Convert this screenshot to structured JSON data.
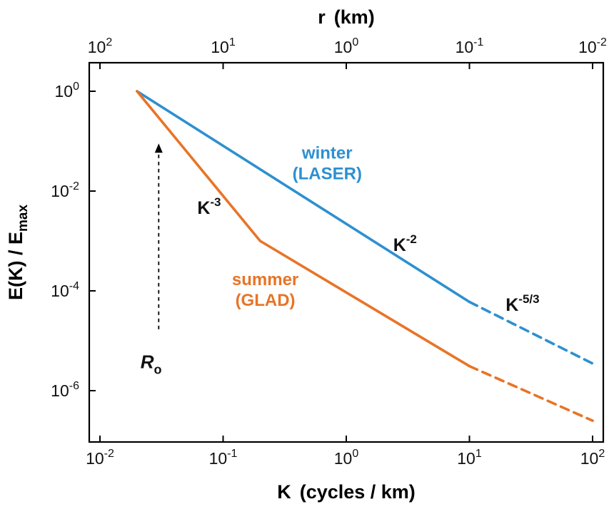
{
  "figure": {
    "background": "#ffffff",
    "frame_color": "#000000"
  },
  "chart_data": {
    "type": "line",
    "title": "",
    "grid": false,
    "legend": "none (in-plot curve labels)",
    "x_axis": {
      "label_main": "K",
      "label_paren": "(cycles / km)",
      "scale": "log",
      "tick_exponents": [
        -2,
        -1,
        0,
        1,
        2
      ],
      "range_exponents": [
        -2.1,
        2.1
      ]
    },
    "top_axis": {
      "label_main": "r",
      "label_paren": "(km)",
      "scale": "log",
      "tick_exponents": [
        2,
        1,
        0,
        -1,
        -2
      ]
    },
    "y_axis": {
      "label_main": "E(K) / E",
      "label_sub": "max",
      "scale": "log",
      "tick_exponents": [
        0,
        -2,
        -4,
        -6
      ],
      "range_exponents": [
        0.57,
        -7.0
      ]
    },
    "series": [
      {
        "name": "winter (LASER) solid",
        "color": "#2d90d0",
        "style": "solid",
        "points": [
          [
            0.02,
            1
          ],
          [
            10,
            6e-05
          ]
        ]
      },
      {
        "name": "winter (LASER) dashed tail",
        "color": "#2d90d0",
        "style": "dashed",
        "points": [
          [
            10,
            6e-05
          ],
          [
            100,
            3.5e-06
          ]
        ]
      },
      {
        "name": "summer (GLAD) solid",
        "color": "#e87427",
        "style": "solid",
        "points": [
          [
            0.02,
            1
          ],
          [
            0.2,
            0.001
          ],
          [
            10,
            3.1e-06
          ]
        ]
      },
      {
        "name": "summer (GLAD) dashed tail",
        "color": "#e87427",
        "style": "dashed",
        "points": [
          [
            10,
            3.1e-06
          ],
          [
            100,
            2.5e-07
          ]
        ]
      }
    ],
    "curve_labels": [
      {
        "lines": [
          "winter",
          "(LASER)"
        ],
        "color": "#2d90d0",
        "anchor": [
          0.7,
          0.045
        ]
      },
      {
        "lines": [
          "summer",
          "(GLAD)"
        ],
        "color": "#e87427",
        "anchor": [
          0.22,
          0.00013
        ]
      }
    ],
    "slope_labels": [
      {
        "base": "K",
        "exp": "-3",
        "anchor": [
          0.077,
          0.0035
        ]
      },
      {
        "base": "K",
        "exp": "-2",
        "anchor": [
          3,
          0.00063
        ]
      },
      {
        "base": "K",
        "exp": "-5/3",
        "anchor": [
          27,
          4e-05
        ]
      }
    ],
    "deformation_radius_marker": {
      "label_base": "R",
      "label_sub": "o",
      "label_anchor": [
        0.026,
        2.8e-06
      ],
      "arrow_k": 0.03,
      "arrow_from_e": 1.7e-05,
      "arrow_to_e": 0.09
    }
  }
}
